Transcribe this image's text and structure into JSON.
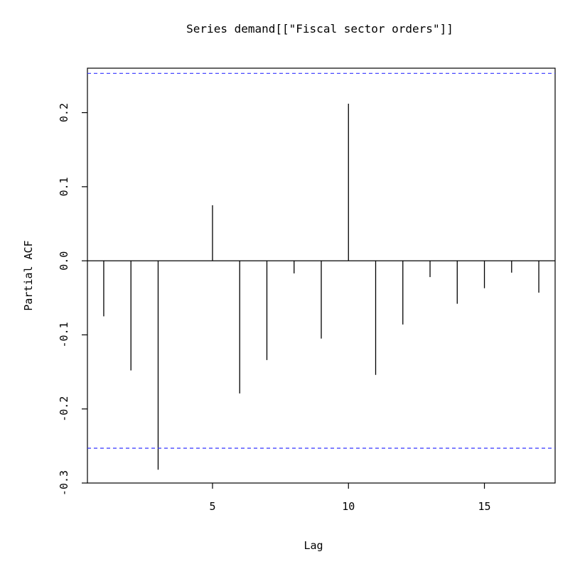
{
  "chart_data": {
    "type": "bar",
    "title": "Series  demand[[\"Fiscal sector orders\"]]",
    "xlabel": "Lag",
    "ylabel": "Partial ACF",
    "xlim": [
      0.4,
      17.6
    ],
    "ylim": [
      -0.3,
      0.26
    ],
    "x_ticks": [
      5,
      10,
      15
    ],
    "x_tick_labels": [
      "5",
      "10",
      "15"
    ],
    "y_ticks": [
      -0.3,
      -0.2,
      -0.1,
      0.0,
      0.1,
      0.2
    ],
    "y_tick_labels": [
      "-0.3",
      "-0.2",
      "-0.1",
      "0.0",
      "0.1",
      "0.2"
    ],
    "confidence_bound": 0.253,
    "confidence_color": "#3333ff",
    "bar_color": "#000000",
    "grid": false,
    "lags": [
      1,
      2,
      3,
      4,
      5,
      6,
      7,
      8,
      9,
      10,
      11,
      12,
      13,
      14,
      15,
      16,
      17
    ],
    "values": [
      -0.075,
      -0.148,
      -0.282,
      0.0,
      0.075,
      -0.179,
      -0.134,
      -0.017,
      -0.105,
      0.212,
      -0.154,
      -0.086,
      -0.022,
      -0.058,
      -0.037,
      -0.016,
      -0.043
    ]
  }
}
